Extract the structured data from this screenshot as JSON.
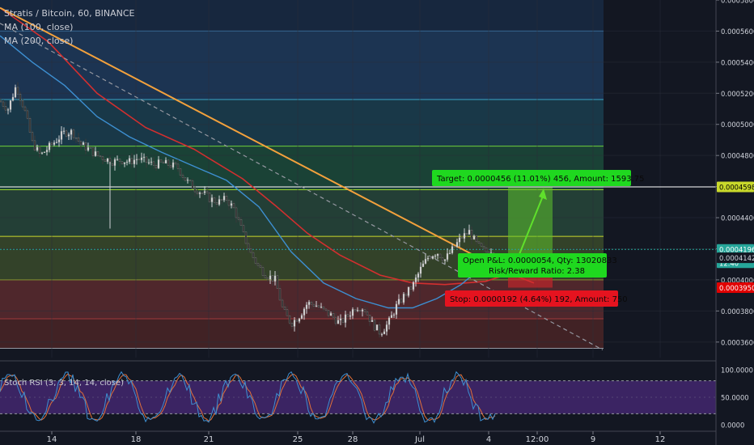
{
  "legend": {
    "title": "Stratis / Bitcoin, 60, BINANCE",
    "ma100": "MA (100, close)",
    "ma200": "MA (200, close)"
  },
  "price_axis": {
    "ticks": [
      "0.0005800",
      "0.0005600",
      "0.0005400",
      "0.0005200",
      "0.0005000",
      "0.0004800",
      "0.0004600",
      "0.0004400",
      "0.0004200",
      "0.0004000",
      "0.0003800",
      "0.0003600"
    ],
    "tags": [
      {
        "text": "0.00045980",
        "value": 0.0004598,
        "bg": "#c9d92b",
        "fg": "#000000"
      },
      {
        "text": "0.00041960",
        "value": 0.0004196,
        "bg": "#26a69a",
        "fg": "#ffffff"
      },
      {
        "text": "12:40",
        "value": 0.000411,
        "bg": "#26a69a",
        "fg": "#ffffff"
      },
      {
        "text": "0.00041420",
        "value": 0.0004142,
        "bg": "#131722",
        "fg": "#d1d4dc"
      },
      {
        "text": "0.00039500",
        "value": 0.000395,
        "bg": "#e00000",
        "fg": "#ffffff"
      }
    ]
  },
  "time_axis": {
    "labels": [
      "14",
      "18",
      "21",
      "25",
      "28",
      "Jul",
      "4",
      "12:00",
      "9",
      "12"
    ]
  },
  "position": {
    "target_label": "Target: 0.0000456 (11.01%) 456, Amount: 1593.75",
    "open_label": "Open P&L: 0.0000054, Qty: 13020833",
    "ratio_label": "Risk/Reward Ratio: 2.38",
    "stop_label": "Stop: 0.0000192 (4.64%) 192, Amount: 750"
  },
  "stoch": {
    "title": "Stoch RSI (3, 3, 14, 14, close)",
    "ticks": [
      "100.0000",
      "50.0000",
      "0.0000"
    ]
  },
  "chart_data": {
    "type": "candlestick",
    "symbol": "Stratis / Bitcoin",
    "interval": "60",
    "exchange": "BINANCE",
    "ylim": [
      0.00035,
      0.00058
    ],
    "x_labels": [
      "14",
      "18",
      "21",
      "25",
      "28",
      "Jul",
      "4",
      "12:00",
      "9",
      "12"
    ],
    "close_path": [
      [
        0,
        0.000515
      ],
      [
        10,
        0.00051
      ],
      [
        20,
        0.000525
      ],
      [
        30,
        0.00051
      ],
      [
        40,
        0.000488
      ],
      [
        50,
        0.00048
      ],
      [
        60,
        0.000485
      ],
      [
        70,
        0.00049
      ],
      [
        80,
        0.000495
      ],
      [
        90,
        0.000495
      ],
      [
        100,
        0.000487
      ],
      [
        110,
        0.000484
      ],
      [
        120,
        0.00048
      ],
      [
        130,
        0.000478
      ],
      [
        140,
        0.000476
      ],
      [
        150,
        0.000477
      ],
      [
        160,
        0.000476
      ],
      [
        170,
        0.000478
      ],
      [
        180,
        0.000476
      ],
      [
        190,
        0.000474
      ],
      [
        200,
        0.000475
      ],
      [
        210,
        0.000474
      ],
      [
        220,
        0.000472
      ],
      [
        230,
        0.000464
      ],
      [
        240,
        0.000459
      ],
      [
        250,
        0.000456
      ],
      [
        260,
        0.000452
      ],
      [
        270,
        0.00045
      ],
      [
        280,
        0.000452
      ],
      [
        290,
        0.000445
      ],
      [
        300,
        0.00043
      ],
      [
        310,
        0.000417
      ],
      [
        320,
        0.000408
      ],
      [
        330,
        0.000403
      ],
      [
        340,
        0.0004
      ],
      [
        350,
        0.00038
      ],
      [
        360,
        0.000372
      ],
      [
        370,
        0.000377
      ],
      [
        380,
        0.000385
      ],
      [
        390,
        0.000384
      ],
      [
        400,
        0.00038
      ],
      [
        410,
        0.000377
      ],
      [
        420,
        0.000372
      ],
      [
        430,
        0.000377
      ],
      [
        440,
        0.000383
      ],
      [
        450,
        0.000382
      ],
      [
        460,
        0.000372
      ],
      [
        470,
        0.000366
      ],
      [
        480,
        0.000372
      ],
      [
        490,
        0.000383
      ],
      [
        500,
        0.00039
      ],
      [
        510,
        0.000396
      ],
      [
        520,
        0.000407
      ],
      [
        530,
        0.000415
      ],
      [
        540,
        0.000418
      ],
      [
        550,
        0.000413
      ],
      [
        560,
        0.00042
      ],
      [
        570,
        0.000427
      ],
      [
        580,
        0.000431
      ],
      [
        590,
        0.000422
      ],
      [
        600,
        0.000418
      ],
      [
        610,
        0.00042
      ]
    ],
    "ma100": {
      "name": "MA (100, close)",
      "color": "#3d8fd1",
      "path": [
        [
          0,
          0.000557
        ],
        [
          40,
          0.00054
        ],
        [
          80,
          0.000525
        ],
        [
          120,
          0.000505
        ],
        [
          160,
          0.000492
        ],
        [
          200,
          0.000482
        ],
        [
          240,
          0.000473
        ],
        [
          280,
          0.000464
        ],
        [
          320,
          0.000447
        ],
        [
          360,
          0.000418
        ],
        [
          400,
          0.000398
        ],
        [
          440,
          0.000388
        ],
        [
          480,
          0.000382
        ],
        [
          510,
          0.000382
        ],
        [
          540,
          0.000388
        ],
        [
          570,
          0.000397
        ],
        [
          600,
          0.00041
        ]
      ]
    },
    "ma200": {
      "name": "MA (200, close)",
      "color": "#d32f2f",
      "path": [
        [
          0,
          0.000575
        ],
        [
          60,
          0.000553
        ],
        [
          120,
          0.00052
        ],
        [
          180,
          0.000498
        ],
        [
          240,
          0.000484
        ],
        [
          300,
          0.000465
        ],
        [
          340,
          0.000448
        ],
        [
          380,
          0.00043
        ],
        [
          420,
          0.000416
        ],
        [
          470,
          0.000403
        ],
        [
          510,
          0.000398
        ],
        [
          550,
          0.000397
        ],
        [
          600,
          0.000399
        ],
        [
          630,
          0.000404
        ],
        [
          660,
          0.000398
        ]
      ]
    },
    "trendline": {
      "color": "#f3a13c",
      "from": [
        0,
        0.000575
      ],
      "to": [
        600,
        0.000412
      ]
    },
    "dashed_line": {
      "color": "#9598a1",
      "from": [
        0,
        0.000565
      ],
      "to": [
        745,
        0.000355
      ]
    },
    "fib_levels": [
      0.00056,
      0.000516,
      0.000486,
      0.000458,
      0.000428,
      0.0004,
      0.000375,
      0.000356
    ],
    "long_position": {
      "entry": 0.0004142,
      "target": 0.0004598,
      "stop": 0.000395,
      "current": 0.0004196,
      "target_pct": "11.01%",
      "stop_pct": "4.64%"
    },
    "stoch_rsi": {
      "upper": 80,
      "lower": 20,
      "ylim": [
        0,
        100
      ]
    }
  }
}
